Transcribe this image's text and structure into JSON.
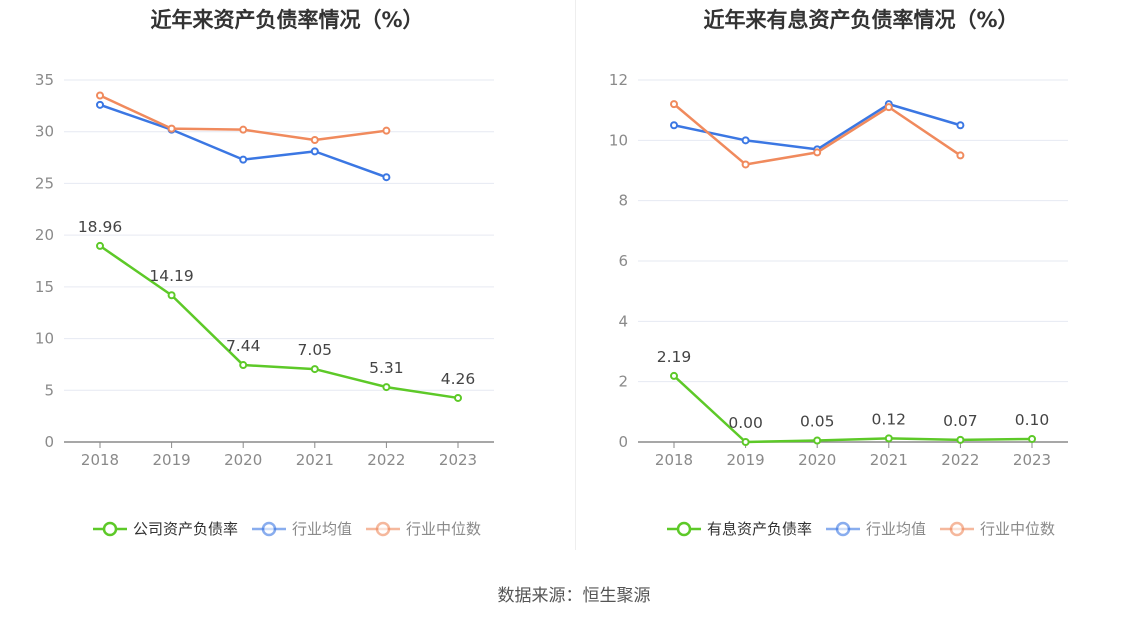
{
  "source_text": "数据来源：恒生聚源",
  "chart_data": [
    {
      "type": "line",
      "title": "近年来资产负债率情况（%）",
      "categories": [
        "2018",
        "2019",
        "2020",
        "2021",
        "2022",
        "2023"
      ],
      "ylim": [
        0,
        35
      ],
      "yticks": [
        0,
        5,
        10,
        15,
        20,
        25,
        30,
        35
      ],
      "grid": true,
      "legend_position": "bottom",
      "series": [
        {
          "name": "公司资产负债率",
          "color": "#5dc928",
          "values": [
            18.96,
            14.19,
            7.44,
            7.05,
            5.31,
            4.26
          ],
          "labels": [
            "18.96",
            "14.19",
            "7.44",
            "7.05",
            "5.31",
            "4.26"
          ]
        },
        {
          "name": "行业均值",
          "color": "#3b77e3",
          "values": [
            32.6,
            30.2,
            27.3,
            28.1,
            25.6,
            null
          ]
        },
        {
          "name": "行业中位数",
          "color": "#f08a5d",
          "values": [
            33.5,
            30.3,
            30.2,
            29.2,
            30.1,
            null
          ]
        }
      ]
    },
    {
      "type": "line",
      "title": "近年来有息资产负债率情况（%）",
      "categories": [
        "2018",
        "2019",
        "2020",
        "2021",
        "2022",
        "2023"
      ],
      "ylim": [
        0,
        12
      ],
      "yticks": [
        0,
        2,
        4,
        6,
        8,
        10,
        12
      ],
      "grid": true,
      "legend_position": "bottom",
      "series": [
        {
          "name": "有息资产负债率",
          "color": "#5dc928",
          "values": [
            2.19,
            0.0,
            0.05,
            0.12,
            0.07,
            0.1
          ],
          "labels": [
            "2.19",
            "0.00",
            "0.05",
            "0.12",
            "0.07",
            "0.10"
          ]
        },
        {
          "name": "行业均值",
          "color": "#3b77e3",
          "values": [
            10.5,
            10.0,
            9.7,
            11.2,
            10.5,
            null
          ]
        },
        {
          "name": "行业中位数",
          "color": "#f08a5d",
          "values": [
            11.2,
            9.2,
            9.6,
            11.1,
            9.5,
            null
          ]
        }
      ]
    }
  ]
}
